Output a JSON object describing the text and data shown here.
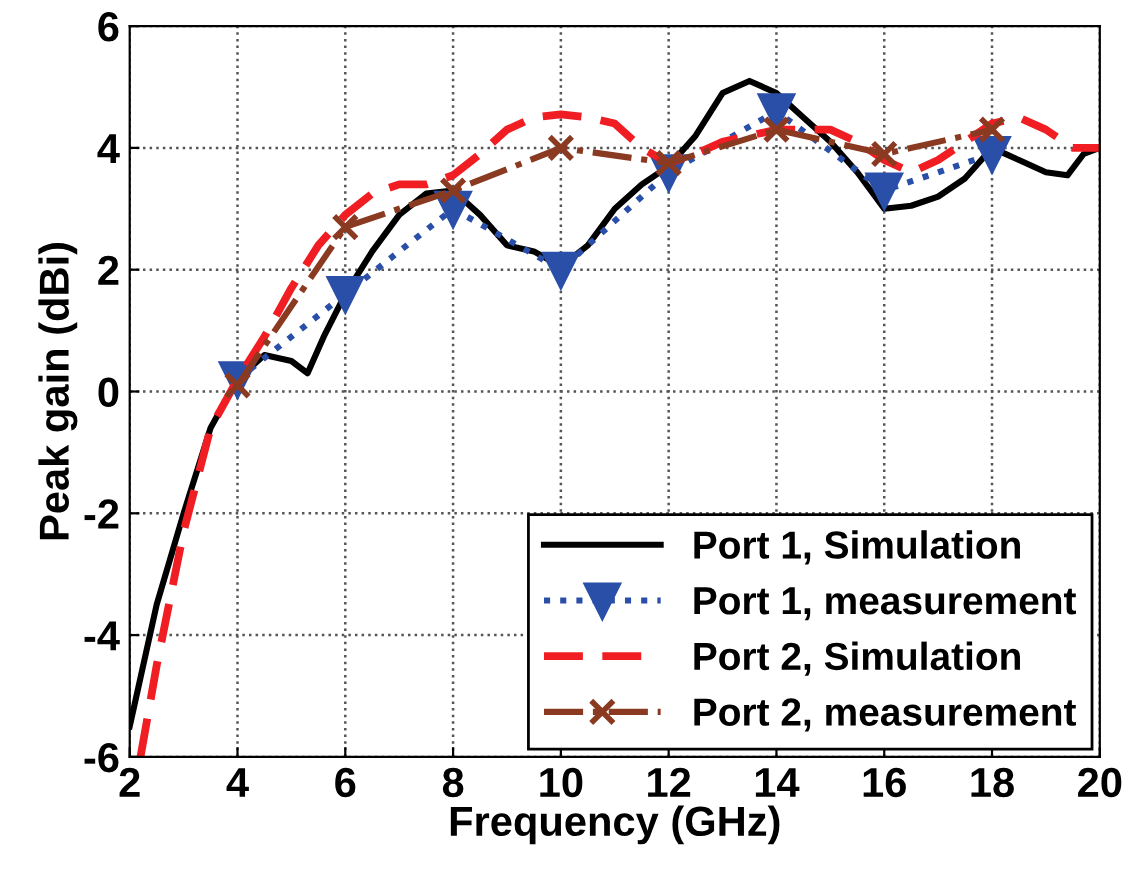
{
  "chart_data": {
    "type": "line",
    "xlabel": "Frequency (GHz)",
    "ylabel": "Peak gain (dBi)",
    "xlim": [
      2,
      20
    ],
    "ylim": [
      -6,
      6
    ],
    "xticks": [
      2,
      4,
      6,
      8,
      10,
      12,
      14,
      16,
      18,
      20
    ],
    "yticks": [
      -6,
      -4,
      -2,
      0,
      2,
      4,
      6
    ],
    "grid": true,
    "legend": "bottom right",
    "series": [
      {
        "name": "Port 1, Simulation",
        "color": "#000000",
        "line_style": "solid",
        "marker": "none",
        "x": [
          2,
          2.5,
          3,
          3.5,
          4,
          4.5,
          5,
          5.3,
          5.6,
          6,
          6.5,
          7,
          7.5,
          8,
          8.5,
          9,
          9.5,
          10,
          10.5,
          11,
          11.5,
          12,
          12.5,
          13,
          13.5,
          14,
          14.5,
          15,
          15.5,
          16,
          16.5,
          17,
          17.5,
          18,
          18.5,
          19,
          19.4,
          19.7,
          20
        ],
        "values": [
          -5.5,
          -3.5,
          -2,
          -0.6,
          0.2,
          0.6,
          0.5,
          0.3,
          0.9,
          1.6,
          2.3,
          2.9,
          3.25,
          3.3,
          2.9,
          2.4,
          2.3,
          2.05,
          2.4,
          3.0,
          3.4,
          3.7,
          4.2,
          4.9,
          5.1,
          4.9,
          4.5,
          4.1,
          3.6,
          3.0,
          3.05,
          3.2,
          3.5,
          4.0,
          3.8,
          3.6,
          3.55,
          3.9,
          4.0
        ]
      },
      {
        "name": "Port 1, measurement",
        "color": "#2a4fa8",
        "line_style": "dotted",
        "marker": "triangle",
        "x": [
          4,
          6,
          8,
          10,
          12,
          14,
          16,
          18
        ],
        "values": [
          0.2,
          1.6,
          3.0,
          2.0,
          3.6,
          4.6,
          3.3,
          3.9
        ]
      },
      {
        "name": "Port 2, Simulation",
        "color": "#f01e23",
        "line_style": "dashed",
        "marker": "none",
        "x": [
          2.2,
          2.5,
          3,
          3.5,
          4,
          4.5,
          5,
          5.5,
          6,
          6.5,
          7,
          7.5,
          8,
          8.5,
          9,
          9.5,
          10,
          10.5,
          11,
          11.5,
          12,
          12.5,
          13,
          13.5,
          14,
          14.5,
          15,
          15.5,
          16,
          16.5,
          17,
          17.5,
          18,
          18.5,
          19,
          19.5,
          20
        ],
        "values": [
          -6,
          -4.5,
          -2.3,
          -0.6,
          0.2,
          0.9,
          1.7,
          2.4,
          2.9,
          3.25,
          3.4,
          3.4,
          3.55,
          3.9,
          4.3,
          4.5,
          4.55,
          4.5,
          4.4,
          4.0,
          3.75,
          3.9,
          4.1,
          4.2,
          4.3,
          4.3,
          4.3,
          4.1,
          3.8,
          3.6,
          3.8,
          4.1,
          4.4,
          4.5,
          4.3,
          4.0,
          4.0
        ]
      },
      {
        "name": "Port 2, measurement",
        "color": "#8b3a22",
        "line_style": "dashdot",
        "marker": "cross",
        "x": [
          4,
          6,
          8,
          10,
          12,
          14,
          16,
          18
        ],
        "values": [
          0.1,
          2.7,
          3.3,
          4.0,
          3.75,
          4.3,
          3.9,
          4.3
        ]
      }
    ]
  }
}
